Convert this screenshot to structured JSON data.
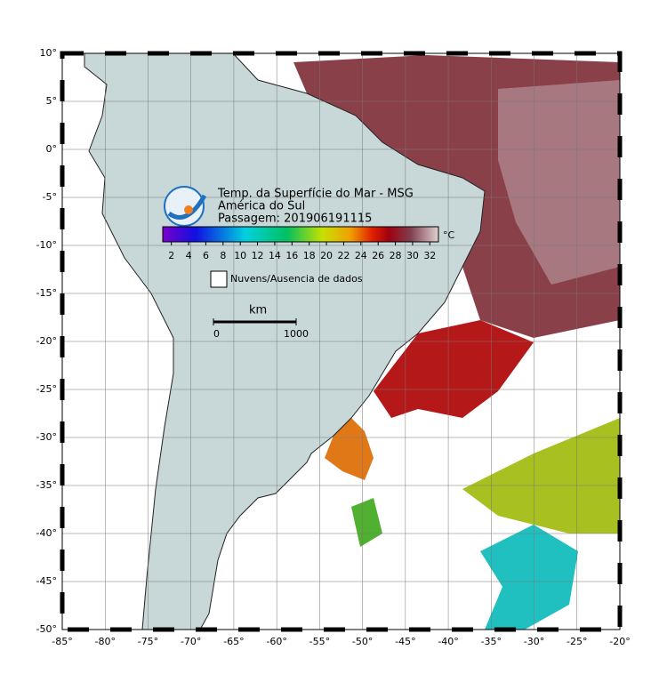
{
  "header": {
    "title": "Temp. da Superfície do Mar - MSG",
    "region": "América do Sul",
    "pass": "Passagem: 201906191115"
  },
  "colorbar": {
    "unit": "°C",
    "range": [
      1,
      33
    ],
    "ticks": [
      2,
      4,
      6,
      8,
      10,
      12,
      14,
      16,
      18,
      20,
      22,
      24,
      26,
      28,
      30,
      32
    ]
  },
  "legend": {
    "no_data": "Nuvens/Ausencia de dados"
  },
  "scale": {
    "unit": "km",
    "ticks": [
      0,
      1000
    ]
  },
  "map": {
    "lon_range": [
      -85,
      -20
    ],
    "lat_range": [
      10,
      -50
    ],
    "lon_ticks": [
      {
        "value": -85,
        "label": "-85°"
      },
      {
        "value": -80,
        "label": "-80°"
      },
      {
        "value": -75,
        "label": "-75°"
      },
      {
        "value": -70,
        "label": "-70°"
      },
      {
        "value": -65,
        "label": "-65°"
      },
      {
        "value": -60,
        "label": "-60°"
      },
      {
        "value": -55,
        "label": "-55°"
      },
      {
        "value": -50,
        "label": "-50°"
      },
      {
        "value": -45,
        "label": "-45°"
      },
      {
        "value": -40,
        "label": "-40°"
      },
      {
        "value": -35,
        "label": "-35°"
      },
      {
        "value": -30,
        "label": "-30°"
      },
      {
        "value": -25,
        "label": "-25°"
      },
      {
        "value": -20,
        "label": "-20°"
      }
    ],
    "lat_ticks": [
      {
        "value": 10,
        "label": "10°"
      },
      {
        "value": 5,
        "label": "5°"
      },
      {
        "value": 0,
        "label": "0°"
      },
      {
        "value": -5,
        "label": "-5°"
      },
      {
        "value": -10,
        "label": "-10°"
      },
      {
        "value": -15,
        "label": "-15°"
      },
      {
        "value": -20,
        "label": "-20°"
      },
      {
        "value": -25,
        "label": "-25°"
      },
      {
        "value": -30,
        "label": "-30°"
      },
      {
        "value": -35,
        "label": "-35°"
      },
      {
        "value": -40,
        "label": "-40°"
      },
      {
        "value": -45,
        "label": "-45°"
      },
      {
        "value": -50,
        "label": "-50°"
      }
    ]
  }
}
